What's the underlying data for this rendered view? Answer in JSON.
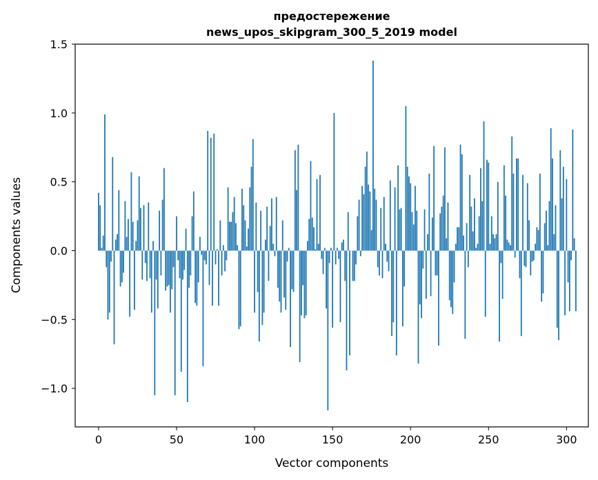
{
  "chart_data": {
    "type": "bar",
    "title_lines": [
      "предостережение",
      "news_upos_skipgram_300_5_2019 model"
    ],
    "xlabel": "Vector components",
    "ylabel": "Components values",
    "xlim": [
      -15,
      314
    ],
    "ylim": [
      -1.28,
      1.5
    ],
    "xticks": [
      0,
      50,
      100,
      150,
      200,
      250,
      300
    ],
    "yticks": [
      -1.0,
      -0.5,
      0.0,
      0.5,
      1.0,
      1.5
    ],
    "ytick_labels": [
      "−1.0",
      "−0.5",
      "0.0",
      "0.5",
      "1.0",
      "1.5"
    ],
    "bar_color": "#1f77b4",
    "grid": false,
    "values": [
      0.42,
      0.33,
      0.02,
      0.11,
      0.99,
      -0.12,
      -0.5,
      -0.45,
      -0.08,
      0.68,
      -0.68,
      0.08,
      0.12,
      0.44,
      -0.26,
      -0.23,
      -0.16,
      0.36,
      0.1,
      0.23,
      -0.48,
      0.57,
      0.21,
      -0.43,
      0.07,
      0.22,
      0.54,
      0.31,
      -0.21,
      0.33,
      -0.09,
      -0.22,
      0.35,
      -0.2,
      -0.45,
      0.07,
      -1.05,
      -0.21,
      -0.42,
      0.29,
      -0.18,
      0.37,
      0.6,
      -0.29,
      -0.26,
      -0.25,
      -0.45,
      -0.28,
      -0.12,
      -1.05,
      0.25,
      -0.07,
      -0.2,
      -0.88,
      -0.21,
      -0.14,
      0.16,
      -1.1,
      -0.27,
      -0.18,
      0.25,
      0.43,
      -0.38,
      -0.4,
      -0.23,
      0.1,
      -0.03,
      -0.84,
      -0.07,
      -0.1,
      0.87,
      -0.25,
      0.82,
      -0.4,
      0.85,
      -0.1,
      0.01,
      -0.4,
      0.22,
      -0.18,
      0.04,
      -0.15,
      -0.07,
      0.46,
      0.21,
      0.21,
      0.28,
      0.39,
      0.2,
      0.04,
      -0.57,
      -0.55,
      0.45,
      0.33,
      0.22,
      0.03,
      0.16,
      0.46,
      0.61,
      0.81,
      -0.45,
      0.35,
      -0.3,
      -0.66,
      0.29,
      -0.54,
      -0.45,
      0.08,
      0.32,
      -0.22,
      0.18,
      0.38,
      0.05,
      -0.04,
      0.39,
      -0.27,
      -0.37,
      -0.45,
      0.22,
      -0.34,
      -0.43,
      -0.08,
      0.02,
      -0.7,
      -0.28,
      -0.3,
      0.73,
      0.44,
      0.77,
      -0.81,
      -0.47,
      -0.25,
      -0.49,
      -0.47,
      0.07,
      0.23,
      0.65,
      0.24,
      0.17,
      0.01,
      0.52,
      0.05,
      0.55,
      -0.06,
      -0.17,
      0.02,
      -0.42,
      -1.16,
      -0.09,
      0.02,
      -0.56,
      1.0,
      -0.1,
      0.02,
      -0.06,
      -0.52,
      0.06,
      0.08,
      -0.22,
      -0.87,
      0.28,
      -0.76,
      0.0,
      -0.22,
      -0.22,
      -0.1,
      0.25,
      0.37,
      -0.04,
      0.47,
      0.41,
      0.61,
      0.72,
      0.48,
      0.43,
      0.15,
      1.38,
      0.45,
      0.37,
      -0.12,
      -0.18,
      0.31,
      -0.2,
      0.39,
      0.05,
      -0.08,
      -0.15,
      0.51,
      -0.62,
      -0.52,
      0.46,
      -0.76,
      0.62,
      0.3,
      0.31,
      -0.55,
      -0.26,
      1.05,
      0.61,
      0.54,
      0.49,
      0.28,
      0.19,
      0.47,
      0.29,
      -0.82,
      -0.39,
      -0.49,
      -0.13,
      0.3,
      -0.35,
      0.12,
      0.56,
      -0.33,
      0.24,
      0.76,
      -0.18,
      -0.18,
      -0.69,
      0.27,
      0.32,
      0.4,
      0.75,
      0.09,
      0.35,
      -0.36,
      -0.41,
      -0.46,
      -0.23,
      0.05,
      0.17,
      0.17,
      0.77,
      0.7,
      0.11,
      -0.64,
      0.2,
      -0.12,
      0.55,
      0.32,
      0.14,
      0.38,
      0.02,
      0.05,
      0.25,
      0.6,
      0.36,
      0.94,
      -0.48,
      0.66,
      0.64,
      0.05,
      0.25,
      0.12,
      0.09,
      0.12,
      0.5,
      -0.66,
      -0.09,
      -0.35,
      0.62,
      0.4,
      0.08,
      0.06,
      0.04,
      0.83,
      0.56,
      -0.05,
      0.67,
      0.67,
      -0.2,
      -0.62,
      0.55,
      -0.11,
      -0.12,
      0.49,
      0.22,
      -0.18,
      -0.08,
      -0.07,
      0.05,
      0.17,
      0.15,
      0.56,
      -0.37,
      -0.31,
      0.2,
      0.29,
      0.04,
      0.36,
      0.89,
      0.67,
      0.12,
      0.33,
      -0.56,
      -0.65,
      0.73,
      0.38,
      0.61,
      -0.47,
      0.52,
      -0.23,
      -0.44,
      -0.07,
      0.88,
      0.09,
      -0.44
    ]
  }
}
